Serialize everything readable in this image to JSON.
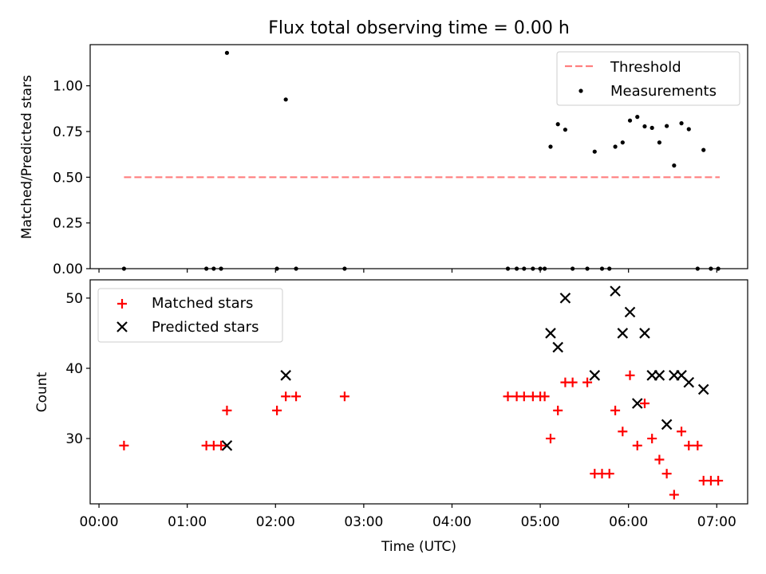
{
  "figure": {
    "background": "#ffffff"
  },
  "chart_data": [
    {
      "type": "scatter",
      "title": "Flux total observing time = 0.00 h",
      "xlabel": "",
      "ylabel": "Matched/Predicted stars",
      "ylim": [
        0.0,
        1.225
      ],
      "yticks": [
        0.0,
        0.25,
        0.5,
        0.75,
        1.0
      ],
      "ytick_labels": [
        "0.00",
        "0.25",
        "0.50",
        "0.75",
        "1.00"
      ],
      "xlim_hours": [
        -0.1,
        7.35
      ],
      "xtick_hours": [
        0,
        1,
        2,
        3,
        4,
        5,
        6,
        7
      ],
      "xtick_labels_visible": false,
      "grid": false,
      "legend": "top-right",
      "threshold": {
        "name": "Threshold",
        "color": "#ff7f7f",
        "style": "dashed",
        "y": 0.5,
        "x": [
          "00:17",
          "07:02"
        ]
      },
      "series": [
        {
          "name": "Measurements",
          "color": "#000000",
          "marker": "dot",
          "points": [
            [
              "00:17",
              0.0
            ],
            [
              "01:13",
              0.0
            ],
            [
              "01:18",
              0.0
            ],
            [
              "01:23",
              0.0
            ],
            [
              "01:27",
              1.18
            ],
            [
              "02:01",
              0.0
            ],
            [
              "02:07",
              0.925
            ],
            [
              "02:14",
              0.0
            ],
            [
              "02:47",
              0.0
            ],
            [
              "04:38",
              0.0
            ],
            [
              "04:44",
              0.0
            ],
            [
              "04:49",
              0.0
            ],
            [
              "04:55",
              0.0
            ],
            [
              "05:00",
              0.0
            ],
            [
              "05:03",
              0.0
            ],
            [
              "05:07",
              0.667
            ],
            [
              "05:12",
              0.79
            ],
            [
              "05:17",
              0.76
            ],
            [
              "05:22",
              0.0
            ],
            [
              "05:32",
              0.0
            ],
            [
              "05:37",
              0.64
            ],
            [
              "05:42",
              0.0
            ],
            [
              "05:47",
              0.0
            ],
            [
              "05:51",
              0.667
            ],
            [
              "05:56",
              0.69
            ],
            [
              "06:01",
              0.81
            ],
            [
              "06:06",
              0.83
            ],
            [
              "06:11",
              0.778
            ],
            [
              "06:16",
              0.77
            ],
            [
              "06:21",
              0.69
            ],
            [
              "06:26",
              0.78
            ],
            [
              "06:31",
              0.564
            ],
            [
              "06:36",
              0.795
            ],
            [
              "06:41",
              0.763
            ],
            [
              "06:47",
              0.0
            ],
            [
              "06:51",
              0.649
            ],
            [
              "06:56",
              0.0
            ],
            [
              "07:01",
              0.0
            ]
          ]
        }
      ]
    },
    {
      "type": "scatter",
      "title": "",
      "xlabel": "Time (UTC)",
      "ylabel": "Count",
      "ylim": [
        20.7,
        52.6
      ],
      "yticks": [
        30,
        40,
        50
      ],
      "ytick_labels": [
        "30",
        "40",
        "50"
      ],
      "xlim_hours": [
        -0.1,
        7.35
      ],
      "xtick_hours": [
        0,
        1,
        2,
        3,
        4,
        5,
        6,
        7
      ],
      "xtick_labels": [
        "00:00",
        "01:00",
        "02:00",
        "03:00",
        "04:00",
        "05:00",
        "06:00",
        "07:00"
      ],
      "grid": false,
      "legend": "top-left",
      "series": [
        {
          "name": "Matched stars",
          "color": "#ff0000",
          "marker": "plus",
          "points": [
            [
              "00:17",
              29
            ],
            [
              "01:13",
              29
            ],
            [
              "01:18",
              29
            ],
            [
              "01:23",
              29
            ],
            [
              "01:27",
              34
            ],
            [
              "02:01",
              34
            ],
            [
              "02:07",
              36
            ],
            [
              "02:14",
              36
            ],
            [
              "02:47",
              36
            ],
            [
              "04:38",
              36
            ],
            [
              "04:44",
              36
            ],
            [
              "04:49",
              36
            ],
            [
              "04:55",
              36
            ],
            [
              "05:00",
              36
            ],
            [
              "05:03",
              36
            ],
            [
              "05:07",
              30
            ],
            [
              "05:12",
              34
            ],
            [
              "05:17",
              38
            ],
            [
              "05:22",
              38
            ],
            [
              "05:32",
              38
            ],
            [
              "05:37",
              25
            ],
            [
              "05:42",
              25
            ],
            [
              "05:47",
              25
            ],
            [
              "05:51",
              34
            ],
            [
              "05:56",
              31
            ],
            [
              "06:01",
              39
            ],
            [
              "06:06",
              29
            ],
            [
              "06:11",
              35
            ],
            [
              "06:16",
              30
            ],
            [
              "06:21",
              27
            ],
            [
              "06:26",
              25
            ],
            [
              "06:31",
              22
            ],
            [
              "06:36",
              31
            ],
            [
              "06:41",
              29
            ],
            [
              "06:47",
              29
            ],
            [
              "06:51",
              24
            ],
            [
              "06:56",
              24
            ],
            [
              "07:01",
              24
            ]
          ]
        },
        {
          "name": "Predicted stars",
          "color": "#000000",
          "marker": "x",
          "points": [
            [
              "01:27",
              29
            ],
            [
              "02:07",
              39
            ],
            [
              "05:07",
              45
            ],
            [
              "05:12",
              43
            ],
            [
              "05:17",
              50
            ],
            [
              "05:37",
              39
            ],
            [
              "05:51",
              51
            ],
            [
              "05:56",
              45
            ],
            [
              "06:01",
              48
            ],
            [
              "06:06",
              35
            ],
            [
              "06:11",
              45
            ],
            [
              "06:16",
              39
            ],
            [
              "06:21",
              39
            ],
            [
              "06:26",
              32
            ],
            [
              "06:31",
              39
            ],
            [
              "06:36",
              39
            ],
            [
              "06:41",
              38
            ],
            [
              "06:51",
              37
            ]
          ]
        }
      ]
    }
  ]
}
